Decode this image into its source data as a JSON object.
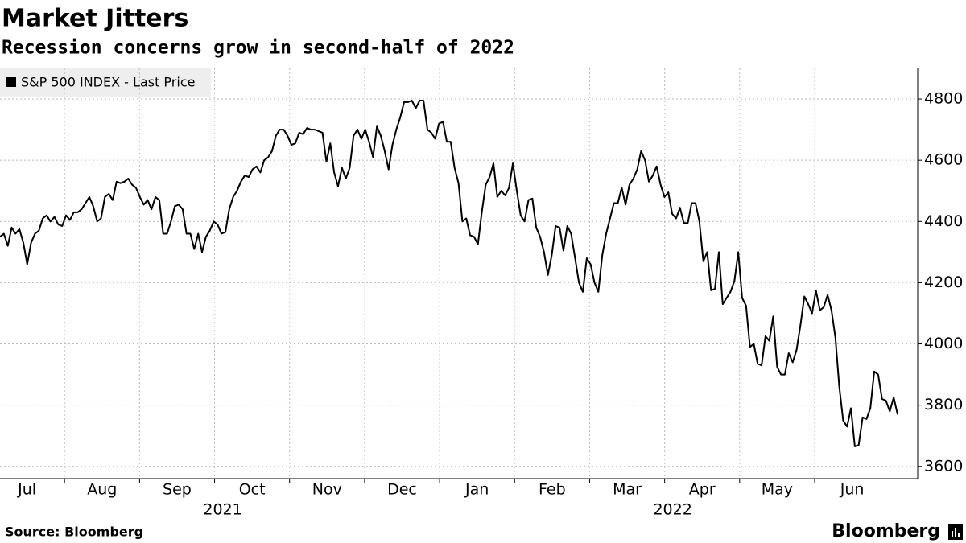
{
  "chart_data": {
    "type": "line",
    "title": "Market Jitters",
    "subtitle": "Recession concerns grow in second-half of 2022",
    "source": "Source: Bloomberg",
    "brand": "Bloomberg",
    "months": [
      "Jul",
      "Aug",
      "Sep",
      "Oct",
      "Nov",
      "Dec",
      "Jan",
      "Feb",
      "Mar",
      "Apr",
      "May",
      "Jun"
    ],
    "years": [
      "2021",
      "2022"
    ],
    "ylim": [
      3560,
      4900
    ],
    "yticks": [
      3600,
      3800,
      4000,
      4200,
      4400,
      4600,
      4800
    ],
    "grid": true,
    "legend": "top-left",
    "series": [
      {
        "name": "S&P 500 INDEX - Last Price",
        "color": "#000000",
        "values": [
          4350,
          4360,
          4320,
          4380,
          4360,
          4375,
          4330,
          4260,
          4330,
          4360,
          4370,
          4410,
          4420,
          4400,
          4415,
          4390,
          4385,
          4420,
          4405,
          4430,
          4430,
          4440,
          4460,
          4480,
          4450,
          4400,
          4410,
          4480,
          4490,
          4470,
          4530,
          4525,
          4530,
          4540,
          4520,
          4510,
          4480,
          4455,
          4470,
          4440,
          4480,
          4470,
          4360,
          4360,
          4400,
          4450,
          4455,
          4440,
          4360,
          4360,
          4310,
          4360,
          4300,
          4350,
          4370,
          4400,
          4390,
          4360,
          4365,
          4440,
          4480,
          4500,
          4530,
          4550,
          4545,
          4570,
          4580,
          4560,
          4600,
          4610,
          4630,
          4680,
          4700,
          4700,
          4680,
          4650,
          4655,
          4690,
          4685,
          4705,
          4700,
          4700,
          4695,
          4690,
          4595,
          4655,
          4560,
          4515,
          4575,
          4540,
          4575,
          4680,
          4700,
          4670,
          4700,
          4660,
          4610,
          4710,
          4680,
          4630,
          4570,
          4650,
          4700,
          4740,
          4790,
          4790,
          4795,
          4770,
          4795,
          4795,
          4700,
          4690,
          4670,
          4720,
          4725,
          4660,
          4660,
          4575,
          4525,
          4400,
          4410,
          4355,
          4350,
          4325,
          4430,
          4520,
          4545,
          4590,
          4480,
          4500,
          4485,
          4510,
          4590,
          4500,
          4420,
          4400,
          4470,
          4475,
          4380,
          4350,
          4300,
          4225,
          4290,
          4385,
          4380,
          4305,
          4385,
          4360,
          4280,
          4200,
          4170,
          4280,
          4260,
          4200,
          4170,
          4290,
          4360,
          4410,
          4460,
          4460,
          4510,
          4455,
          4520,
          4540,
          4570,
          4630,
          4600,
          4530,
          4550,
          4580,
          4520,
          4480,
          4495,
          4425,
          4410,
          4445,
          4395,
          4395,
          4460,
          4460,
          4400,
          4270,
          4300,
          4175,
          4180,
          4300,
          4130,
          4150,
          4170,
          4205,
          4300,
          4150,
          4125,
          3990,
          4000,
          3935,
          3930,
          4025,
          4010,
          4090,
          3925,
          3900,
          3900,
          3970,
          3940,
          3980,
          4060,
          4155,
          4130,
          4100,
          4175,
          4110,
          4120,
          4160,
          4110,
          4020,
          3860,
          3750,
          3730,
          3790,
          3665,
          3670,
          3760,
          3755,
          3790,
          3910,
          3900,
          3820,
          3815,
          3780,
          3825,
          3770
        ]
      }
    ]
  }
}
